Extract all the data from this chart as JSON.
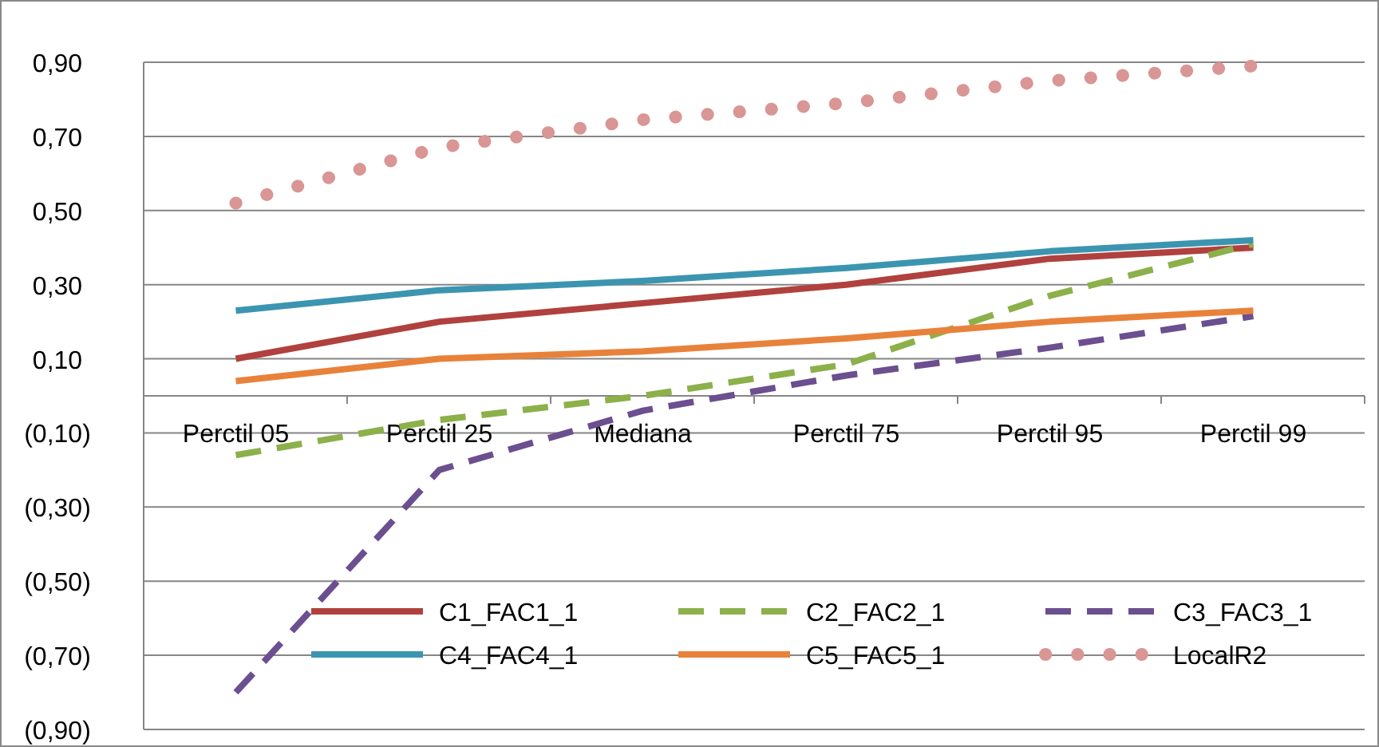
{
  "chart_data": {
    "type": "line",
    "categories": [
      "Perctil 05",
      "Perctil 25",
      "Mediana",
      "Perctil 75",
      "Perctil 95",
      "Perctil 99"
    ],
    "series": [
      {
        "name": "C1_FAC1_1",
        "color": "#b0413e",
        "line_style": "solid",
        "values": [
          0.1,
          0.2,
          0.25,
          0.3,
          0.37,
          0.4
        ]
      },
      {
        "name": "C2_FAC2_1",
        "color": "#8cb04a",
        "line_style": "dashed",
        "values": [
          -0.16,
          -0.065,
          0.0,
          0.085,
          0.27,
          0.41
        ]
      },
      {
        "name": "C3_FAC3_1",
        "color": "#6b4f8f",
        "line_style": "dashed",
        "values": [
          -0.8,
          -0.2,
          -0.04,
          0.055,
          0.13,
          0.215
        ]
      },
      {
        "name": "C4_FAC4_1",
        "color": "#3c95b0",
        "line_style": "solid",
        "values": [
          0.23,
          0.285,
          0.31,
          0.345,
          0.39,
          0.42
        ]
      },
      {
        "name": "C5_FAC5_1",
        "color": "#e8823a",
        "line_style": "solid",
        "values": [
          0.04,
          0.1,
          0.12,
          0.155,
          0.2,
          0.23
        ]
      },
      {
        "name": "LocalR2",
        "color": "#d99694",
        "line_style": "dotted",
        "values": [
          0.52,
          0.67,
          0.745,
          0.79,
          0.85,
          0.89
        ]
      }
    ],
    "ylim": [
      -0.9,
      0.9
    ],
    "yticks": [
      {
        "value": 0.9,
        "label": "0,90"
      },
      {
        "value": 0.7,
        "label": "0,70"
      },
      {
        "value": 0.5,
        "label": "0,50"
      },
      {
        "value": 0.3,
        "label": "0,30"
      },
      {
        "value": 0.1,
        "label": "0,10"
      },
      {
        "value": -0.1,
        "label": "(0,10)"
      },
      {
        "value": -0.3,
        "label": "(0,30)"
      },
      {
        "value": -0.5,
        "label": "(0,50)"
      },
      {
        "value": -0.7,
        "label": "(0,70)"
      },
      {
        "value": -0.9,
        "label": "(0,90)"
      }
    ],
    "grid": "y",
    "legend": "bottom"
  }
}
